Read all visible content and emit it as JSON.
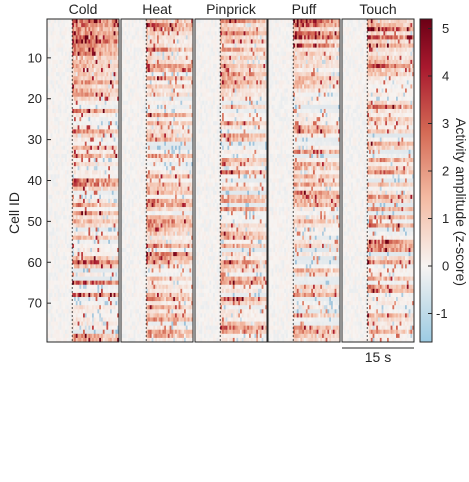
{
  "chart_data": {
    "type": "heatmap",
    "panels": [
      {
        "title": "Cold",
        "seed": 11,
        "intensity": 1.35,
        "front": 1.0
      },
      {
        "title": "Heat",
        "seed": 23,
        "intensity": 1.0,
        "front": 0.3
      },
      {
        "title": "Pinprick",
        "seed": 37,
        "intensity": 1.05,
        "front": 0.35
      },
      {
        "title": "Puff",
        "seed": 41,
        "intensity": 1.05,
        "front": 0.4
      },
      {
        "title": "Touch",
        "seed": 53,
        "intensity": 1.15,
        "front": 0.45
      }
    ],
    "ylabel": "Cell ID",
    "yticks": [
      10,
      20,
      30,
      40,
      50,
      60,
      70
    ],
    "n_cells": 79,
    "time_bins": 40,
    "stimulus_onset_fraction": 0.35,
    "scale_bar_label": "15 s",
    "colorbar": {
      "label": "Activity amplitude (z-score)",
      "min": -1.6,
      "max": 5.2,
      "ticks": [
        -1,
        0,
        1,
        2,
        3,
        4,
        5
      ]
    },
    "colors": {
      "low": "#4e8fbd",
      "mid": "#f7f4f2",
      "high": "#6b0015"
    }
  }
}
